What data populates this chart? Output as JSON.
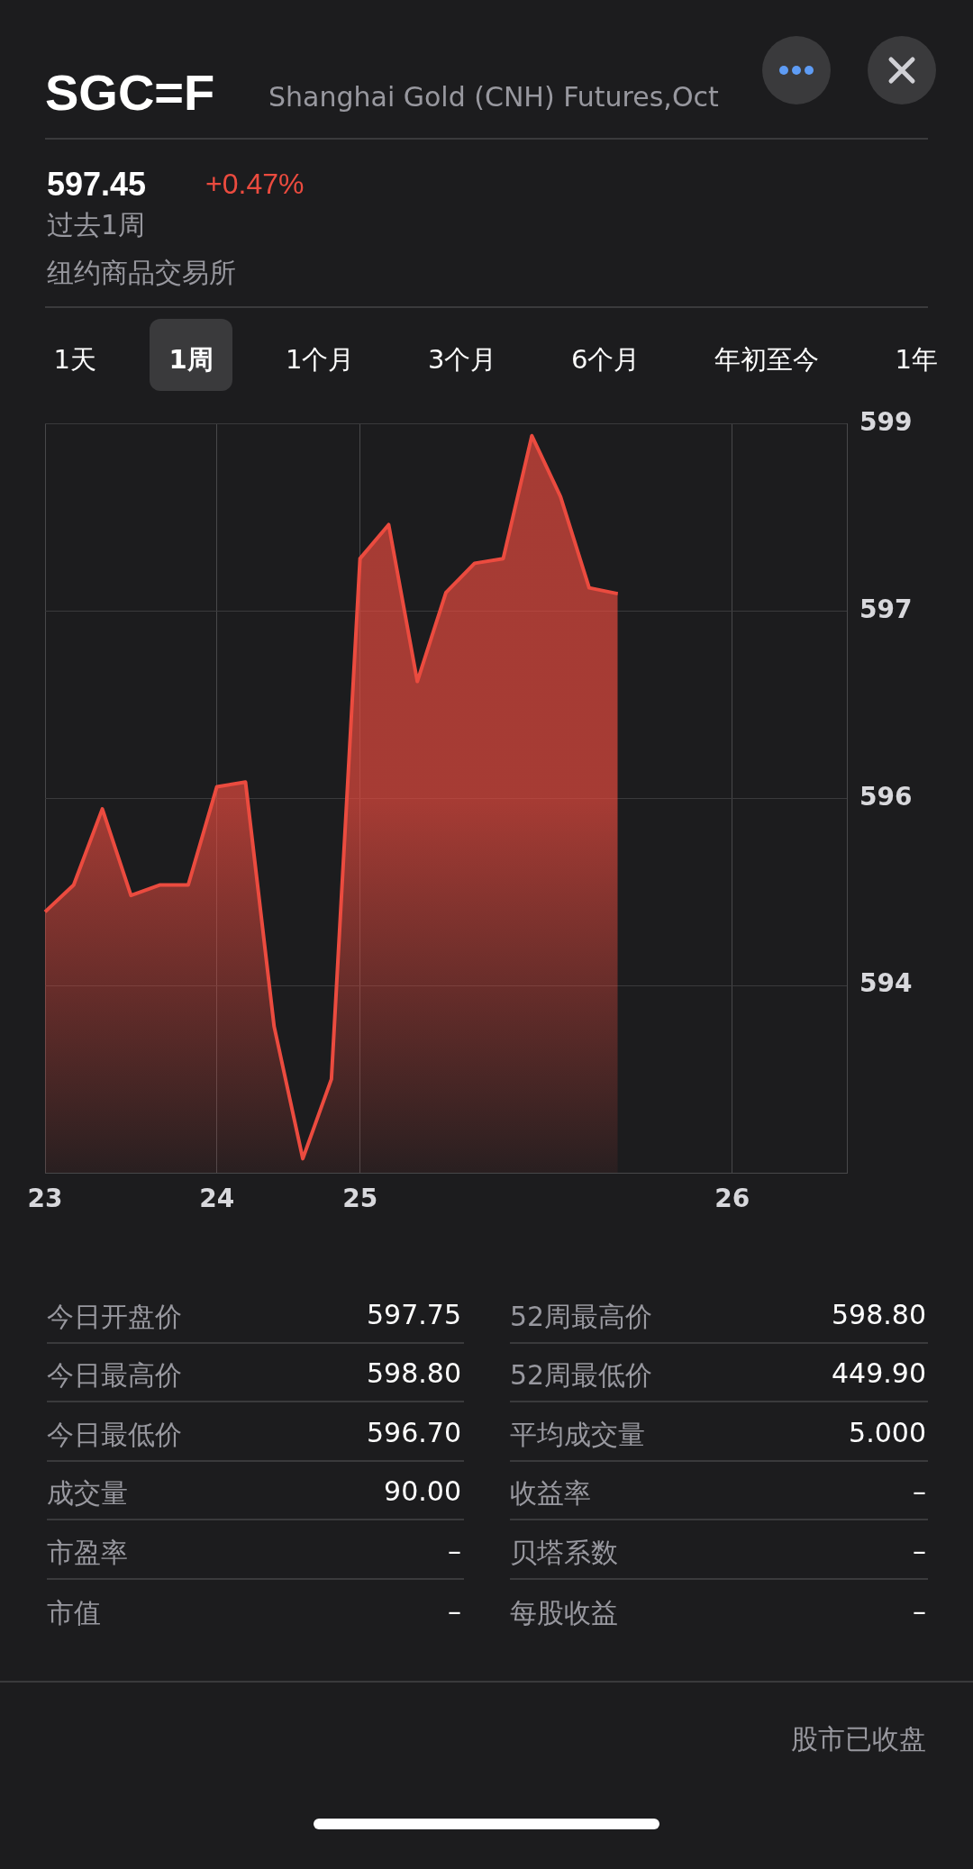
{
  "chart_data": {
    "type": "area",
    "title": "SGC=F",
    "subtitle": "Shanghai Gold (CNH) Futures,Oct",
    "categories": [
      "23",
      null,
      null,
      null,
      null,
      null,
      "24",
      null,
      null,
      null,
      null,
      "25",
      null,
      null,
      null,
      null,
      null,
      null,
      null,
      null,
      null,
      null,
      null,
      null,
      "26",
      null,
      null,
      null,
      null
    ],
    "series": [
      {
        "color": "#eb4b3f",
        "values": [
          594.73,
          594.96,
          595.61,
          594.87,
          594.96,
          594.96,
          595.8,
          595.84,
          593.75,
          592.62,
          593.3,
          597.75,
          598.04,
          596.7,
          597.46,
          597.71,
          597.75,
          598.8,
          598.28,
          597.5,
          597.45,
          null,
          null,
          null,
          null,
          null,
          null,
          null,
          null
        ]
      }
    ],
    "ylim": [
      592.5,
      598.9
    ],
    "yticks": [
      {
        "value": 598.9,
        "label": "599"
      },
      {
        "value": 597.3,
        "label": "597"
      },
      {
        "value": 595.7,
        "label": "596"
      },
      {
        "value": 594.1,
        "label": "594"
      }
    ],
    "grid": true,
    "legend": false,
    "marker": "none",
    "line_style": "solid",
    "annotations": [
      "597.45",
      "+0.47%",
      "过去1周",
      "纽约商品交易所",
      "1天",
      "1周",
      "1个月",
      "3个月",
      "6个月",
      "年初至今",
      "1年",
      "今日开盘价",
      "597.75",
      "52周最高价",
      "598.80",
      "今日最高价",
      "598.80",
      "52周最低价",
      "449.90",
      "今日最低价",
      "596.70",
      "平均成交量",
      "5.000",
      "成交量",
      "90.00",
      "收益率",
      "–",
      "市盈率",
      "–",
      "贝塔系数",
      "–",
      "市值",
      "–",
      "每股收益",
      "–",
      "股市已收盘"
    ]
  }
}
